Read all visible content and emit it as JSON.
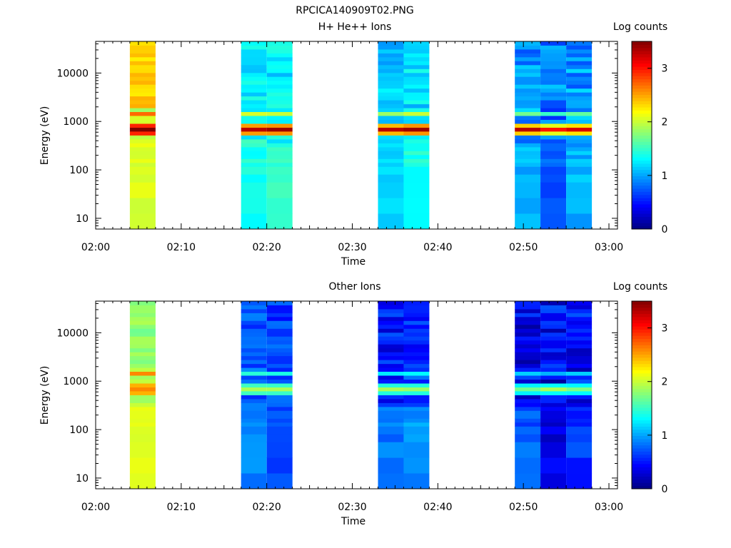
{
  "figure_title": "RPCICA140909T02.PNG",
  "colorbar": {
    "label": "Log counts",
    "ticks": [
      "0",
      "1",
      "2",
      "3"
    ],
    "range": [
      0,
      3.5
    ]
  },
  "x_axis": {
    "label": "Time",
    "ticks": [
      "02:00",
      "02:10",
      "02:20",
      "02:30",
      "02:40",
      "02:50",
      "03:00"
    ],
    "range_minutes": [
      0,
      61
    ]
  },
  "y_axis": {
    "label": "Energy (eV)",
    "ticks": [
      "10",
      "100",
      "1000",
      "10000"
    ],
    "log": true,
    "range": [
      6,
      45000
    ]
  },
  "chart_data": [
    {
      "type": "heatmap",
      "title": "H+ He++ Ions",
      "xlabel": "Time",
      "ylabel": "Energy (eV)",
      "ylog": true,
      "colorbar_label": "Log counts",
      "scans": [
        {
          "t_start": "02:04",
          "t_end": "02:07",
          "profile": "ionA"
        },
        {
          "t_start": "02:17",
          "t_end": "02:20",
          "profile": "ionB"
        },
        {
          "t_start": "02:20",
          "t_end": "02:23",
          "profile": "ionB2"
        },
        {
          "t_start": "02:33",
          "t_end": "02:36",
          "profile": "ionC"
        },
        {
          "t_start": "02:36",
          "t_end": "02:39",
          "profile": "ionC2"
        },
        {
          "t_start": "02:49",
          "t_end": "02:52",
          "profile": "ionD"
        },
        {
          "t_start": "02:52",
          "t_end": "02:55",
          "profile": "ionD2"
        },
        {
          "t_start": "02:55",
          "t_end": "02:58",
          "profile": "ionD3"
        }
      ],
      "peak": {
        "energy_eV": 650,
        "log_counts": 3.5
      }
    },
    {
      "type": "heatmap",
      "title": "Other Ions",
      "xlabel": "Time",
      "ylabel": "Energy (eV)",
      "ylog": true,
      "colorbar_label": "Log counts",
      "scans": [
        {
          "t_start": "02:04",
          "t_end": "02:07",
          "profile": "othA"
        },
        {
          "t_start": "02:17",
          "t_end": "02:20",
          "profile": "othB"
        },
        {
          "t_start": "02:20",
          "t_end": "02:23",
          "profile": "othB2"
        },
        {
          "t_start": "02:33",
          "t_end": "02:36",
          "profile": "othC"
        },
        {
          "t_start": "02:36",
          "t_end": "02:39",
          "profile": "othC2"
        },
        {
          "t_start": "02:49",
          "t_end": "02:52",
          "profile": "othD"
        },
        {
          "t_start": "02:52",
          "t_end": "02:55",
          "profile": "othD2"
        },
        {
          "t_start": "02:55",
          "t_end": "02:58",
          "profile": "othD3"
        }
      ],
      "peak": {
        "energy_eV": 650,
        "log_counts": 2.6
      }
    }
  ]
}
